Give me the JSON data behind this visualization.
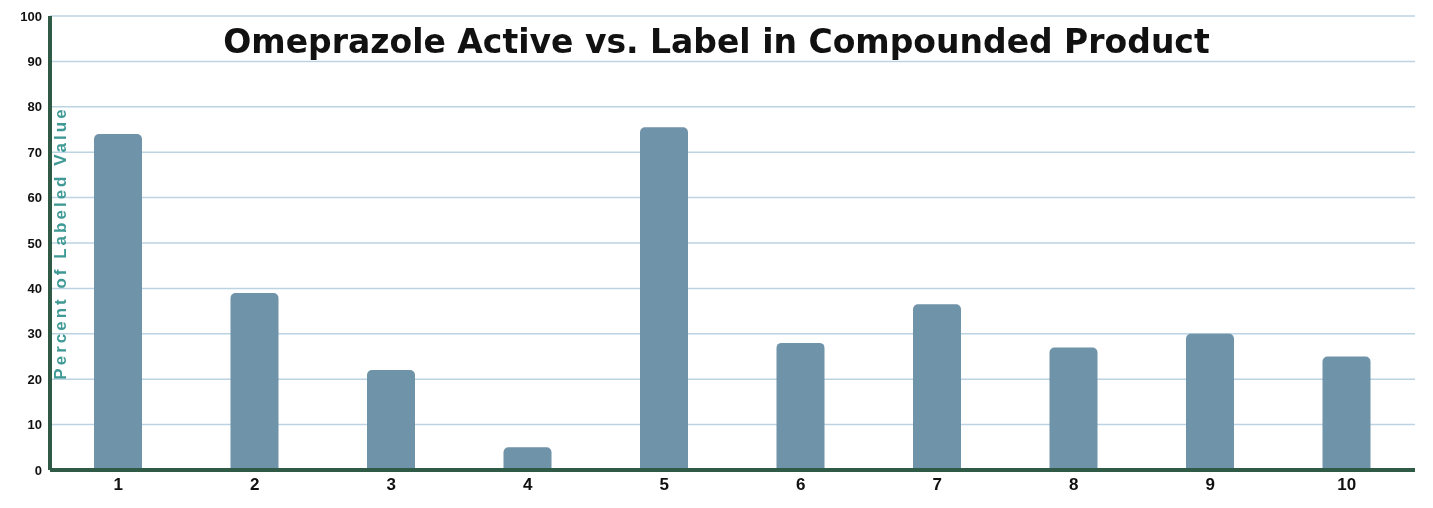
{
  "chart_data": {
    "type": "bar",
    "title": "Omeprazole Active vs. Label in Compounded Product",
    "ylabel": "Percent of Labeled Value",
    "categories": [
      "1",
      "2",
      "3",
      "4",
      "5",
      "6",
      "7",
      "8",
      "9",
      "10"
    ],
    "values": [
      74,
      39,
      22,
      5,
      75.5,
      28,
      36.5,
      27,
      30,
      25
    ],
    "color": "#6f93a8",
    "ylim": [
      0,
      100
    ],
    "yticks": [
      0,
      10,
      20,
      30,
      40,
      50,
      60,
      70,
      80,
      90,
      100
    ],
    "grid": "y"
  }
}
